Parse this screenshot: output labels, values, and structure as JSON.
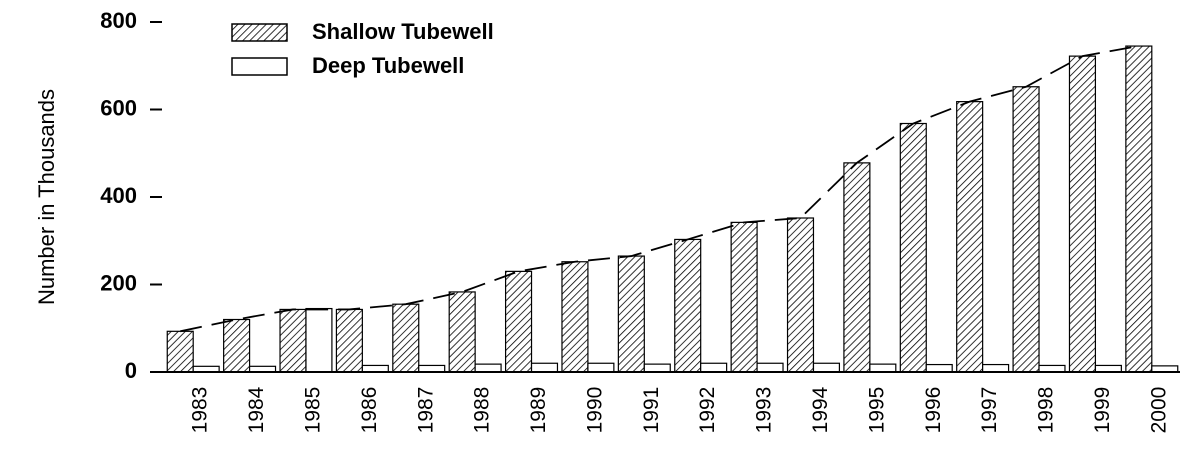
{
  "chart_data": {
    "type": "bar",
    "y_label": "Number in Thousands",
    "categories": [
      "1983",
      "1984",
      "1985",
      "1986",
      "1987",
      "1988",
      "1989",
      "1990",
      "1991",
      "1992",
      "1993",
      "1994",
      "1995",
      "1996",
      "1997",
      "1998",
      "1999",
      "2000"
    ],
    "series": [
      {
        "name": "Shallow Tubewell",
        "color": "#000000",
        "hatch": true,
        "values": [
          93,
          120,
          143,
          143,
          155,
          183,
          230,
          252,
          265,
          303,
          342,
          352,
          478,
          568,
          618,
          652,
          722,
          745
        ]
      },
      {
        "name": "Deep Tubewell",
        "color": "#ffffff",
        "hatch": false,
        "values": [
          13,
          13,
          145,
          15,
          15,
          18,
          20,
          20,
          18,
          20,
          20,
          20,
          18,
          17,
          17,
          15,
          15,
          14
        ]
      }
    ],
    "trend_line": true,
    "ylim": [
      0,
      800
    ],
    "yticks": [
      0,
      200,
      400,
      600,
      800
    ],
    "grid": false,
    "legend": "upper left"
  }
}
